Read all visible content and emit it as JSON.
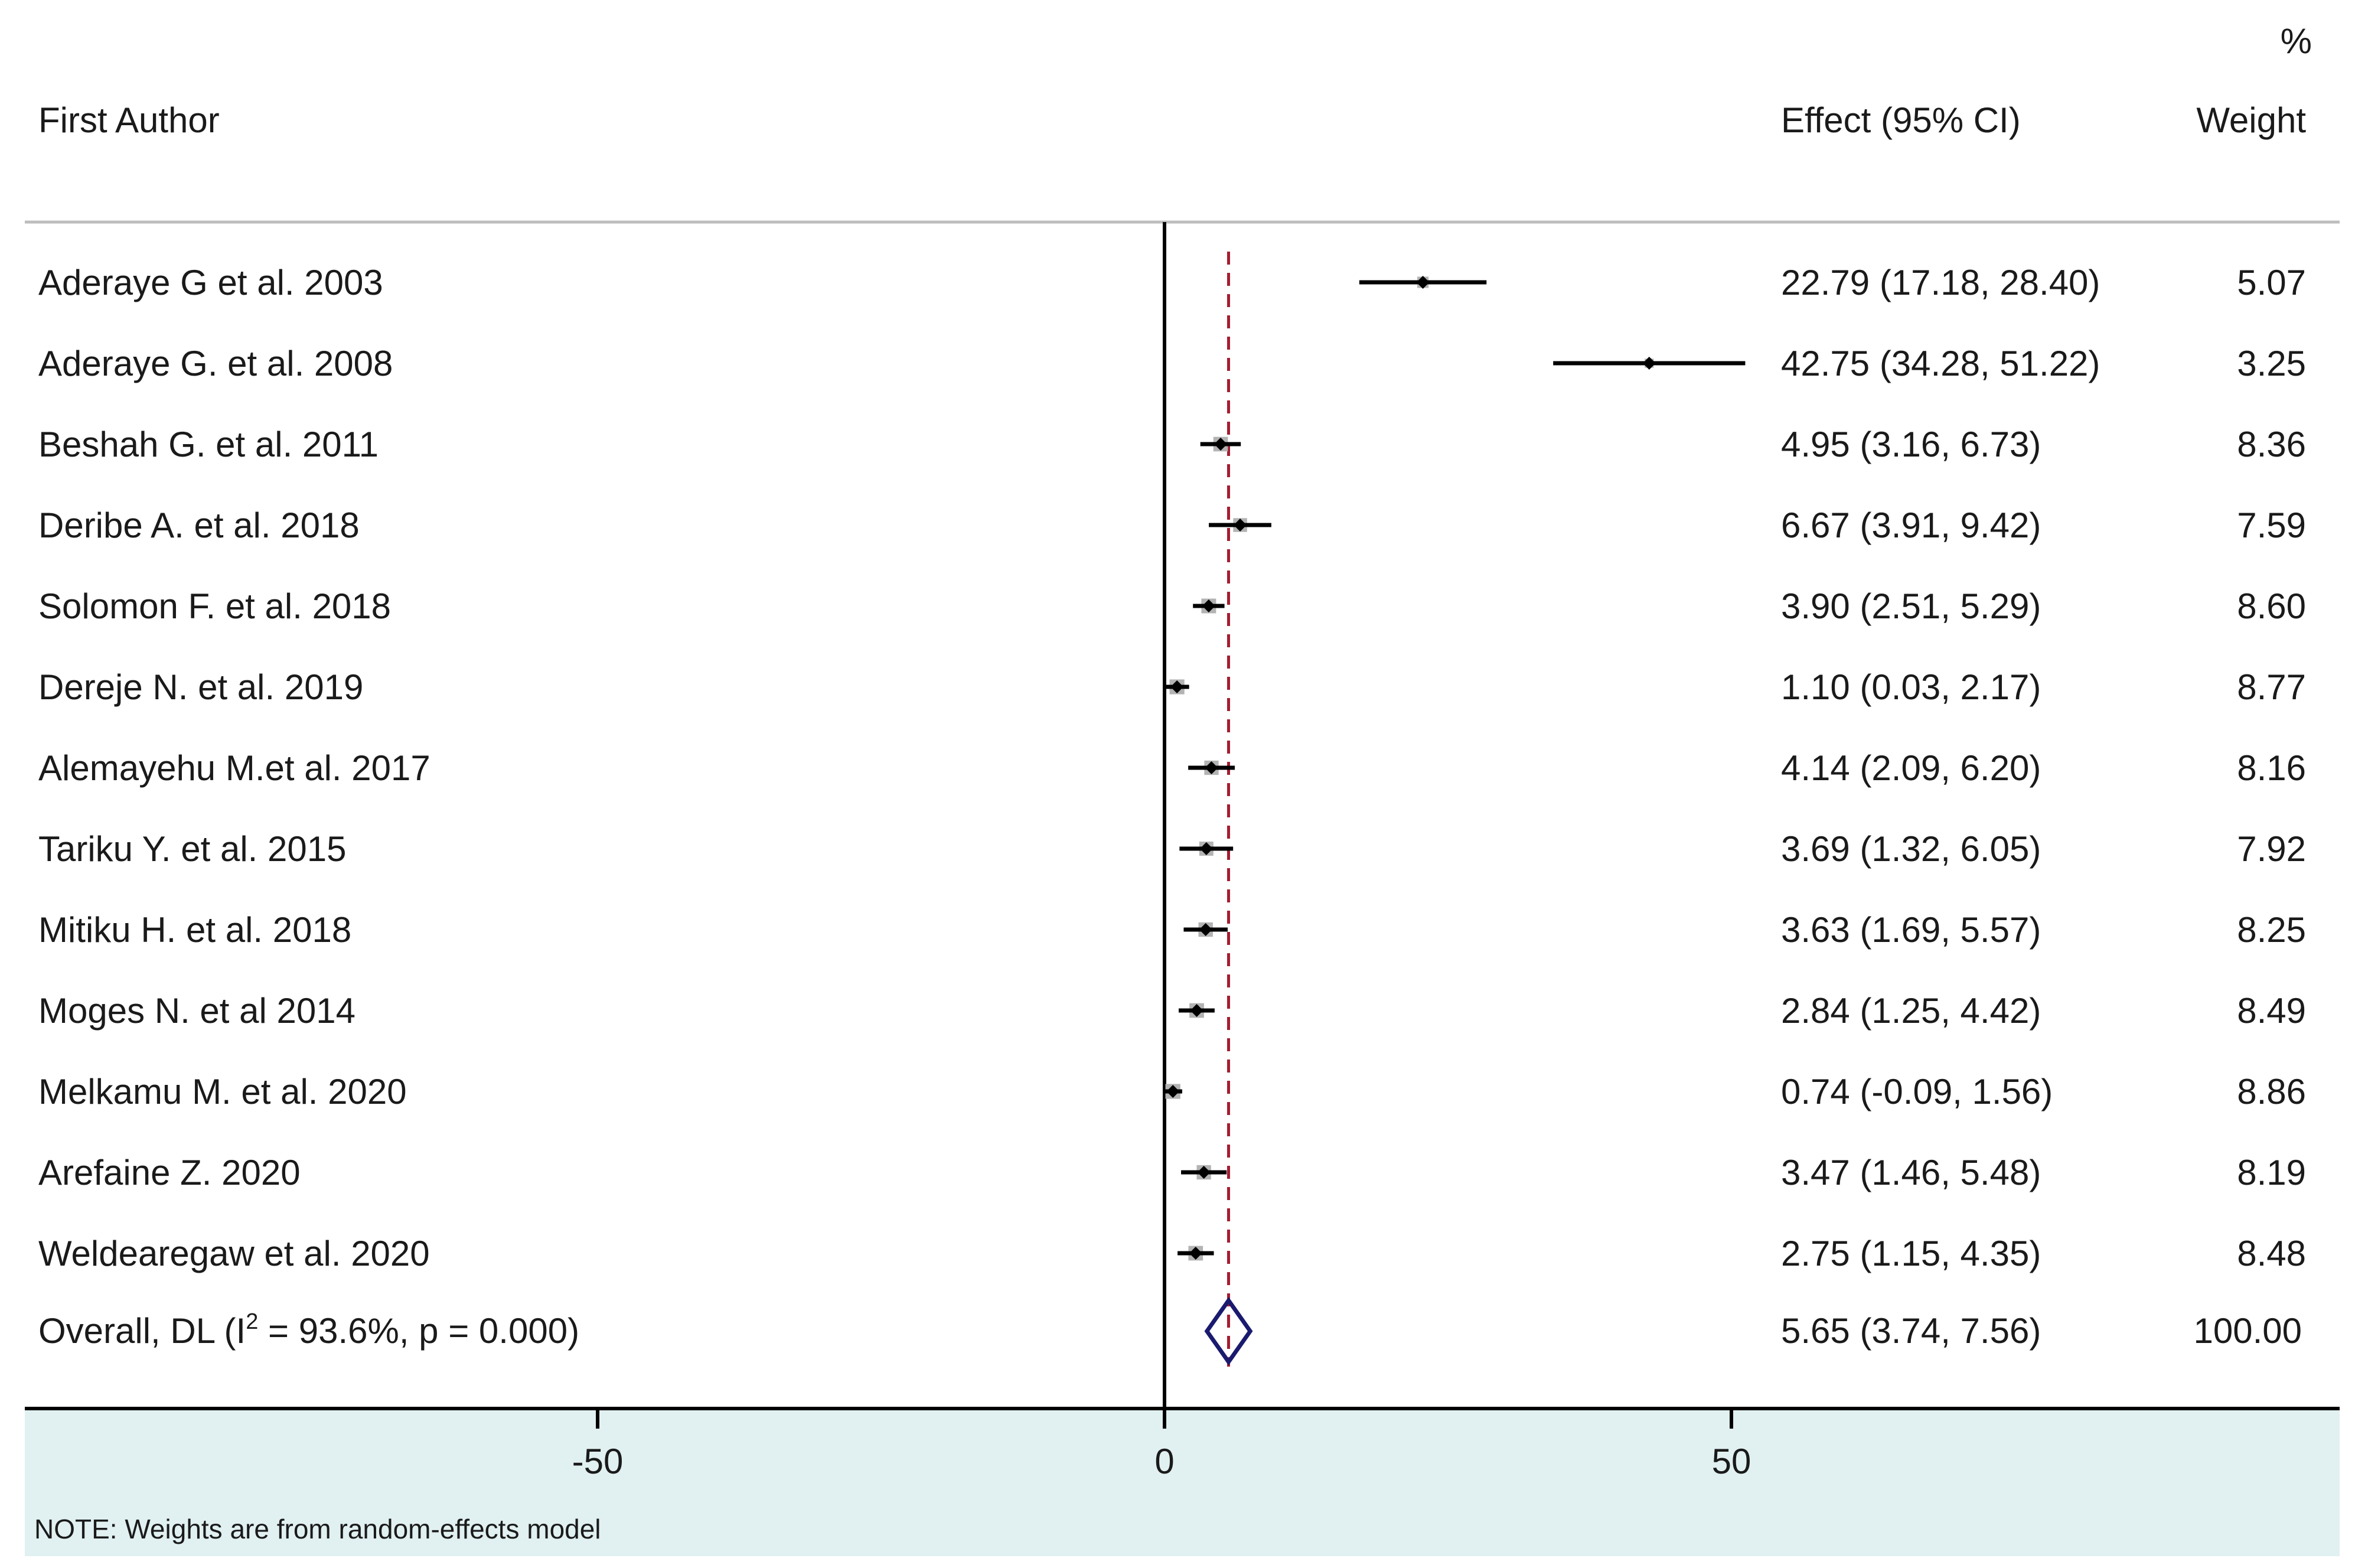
{
  "chart_data": {
    "type": "forest",
    "header": {
      "author_label": "First Author",
      "effect_label": "Effect (95% CI)",
      "weight_pct": "%",
      "weight_label": "Weight"
    },
    "studies": [
      {
        "author": "Aderaye G et al. 2003",
        "effect": 22.79,
        "lo": 17.18,
        "hi": 28.4,
        "weight": 5.07,
        "ci_text": "22.79 (17.18, 28.40)",
        "weight_text": "5.07"
      },
      {
        "author": "Aderaye G. et al. 2008",
        "effect": 42.75,
        "lo": 34.28,
        "hi": 51.22,
        "weight": 3.25,
        "ci_text": "42.75 (34.28, 51.22)",
        "weight_text": "3.25"
      },
      {
        "author": "Beshah G. et al. 2011",
        "effect": 4.95,
        "lo": 3.16,
        "hi": 6.73,
        "weight": 8.36,
        "ci_text": "4.95 (3.16, 6.73)",
        "weight_text": "8.36"
      },
      {
        "author": "Deribe A.  et al. 2018",
        "effect": 6.67,
        "lo": 3.91,
        "hi": 9.42,
        "weight": 7.59,
        "ci_text": "6.67 (3.91, 9.42)",
        "weight_text": "7.59"
      },
      {
        "author": "Solomon F. et al. 2018",
        "effect": 3.9,
        "lo": 2.51,
        "hi": 5.29,
        "weight": 8.6,
        "ci_text": "3.90 (2.51, 5.29)",
        "weight_text": "8.60"
      },
      {
        "author": "Dereje N. et al. 2019",
        "effect": 1.1,
        "lo": 0.03,
        "hi": 2.17,
        "weight": 8.77,
        "ci_text": "1.10 (0.03, 2.17)",
        "weight_text": "8.77"
      },
      {
        "author": "Alemayehu M.et al. 2017",
        "effect": 4.14,
        "lo": 2.09,
        "hi": 6.2,
        "weight": 8.16,
        "ci_text": "4.14 (2.09, 6.20)",
        "weight_text": "8.16"
      },
      {
        "author": "Tariku Y. et al. 2015",
        "effect": 3.69,
        "lo": 1.32,
        "hi": 6.05,
        "weight": 7.92,
        "ci_text": "3.69 (1.32, 6.05)",
        "weight_text": "7.92"
      },
      {
        "author": "Mitiku H. et al. 2018",
        "effect": 3.63,
        "lo": 1.69,
        "hi": 5.57,
        "weight": 8.25,
        "ci_text": "3.63 (1.69, 5.57)",
        "weight_text": "8.25"
      },
      {
        "author": "Moges N. et al 2014",
        "effect": 2.84,
        "lo": 1.25,
        "hi": 4.42,
        "weight": 8.49,
        "ci_text": "2.84 (1.25, 4.42)",
        "weight_text": "8.49"
      },
      {
        "author": "Melkamu M. et al. 2020",
        "effect": 0.74,
        "lo": -0.09,
        "hi": 1.56,
        "weight": 8.86,
        "ci_text": "0.74 (-0.09, 1.56)",
        "weight_text": "8.86"
      },
      {
        "author": "Arefaine Z. 2020",
        "effect": 3.47,
        "lo": 1.46,
        "hi": 5.48,
        "weight": 8.19,
        "ci_text": "3.47 (1.46, 5.48)",
        "weight_text": "8.19"
      },
      {
        "author": "Weldearegaw et al. 2020",
        "effect": 2.75,
        "lo": 1.15,
        "hi": 4.35,
        "weight": 8.48,
        "ci_text": "2.75 (1.15, 4.35)",
        "weight_text": "8.48"
      }
    ],
    "overall": {
      "label_prefix": "Overall, DL (I",
      "label_sup": "2",
      "label_suffix": " = 93.6%, p = 0.000)",
      "effect": 5.65,
      "lo": 3.74,
      "hi": 7.56,
      "ci_text": "5.65 (3.74, 7.56)",
      "weight_text": "100.00"
    },
    "x_axis": {
      "ticks": [
        -50,
        0,
        50
      ],
      "tick_labels": [
        "-50",
        "0",
        "50"
      ],
      "xlim": [
        -100,
        100
      ],
      "null_line": 0
    },
    "note": "NOTE: Weights are from random-effects model",
    "colors": {
      "band": "#e1f0f1",
      "box": "#b3b3b3",
      "ci_line": "#000000",
      "overall_diamond": "#1a1a6e",
      "overall_line": "#a51c30",
      "text": "#1a1a1a",
      "separator": "#bdbdbd"
    }
  }
}
